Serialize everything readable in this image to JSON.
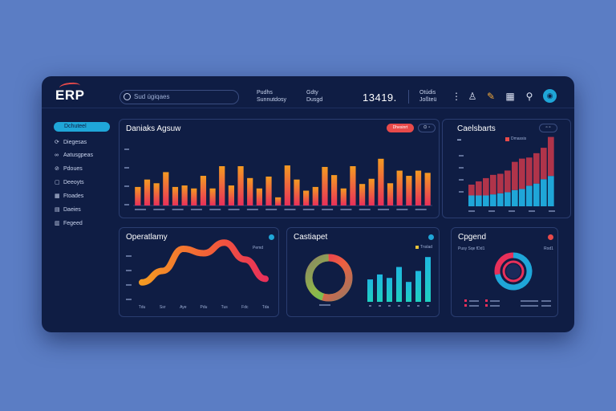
{
  "header": {
    "logo": "ERP",
    "search_text": "Sud úgiqaes",
    "pair1": [
      "Pudhs",
      "Sunnutdosy"
    ],
    "pair2": [
      "Gdty",
      "Dusgd"
    ],
    "clock": "13419.",
    "date": [
      "Otúdis",
      "Joßteü"
    ]
  },
  "sidebar": {
    "active": "Dchuteel",
    "items": [
      {
        "label": "Diegesas",
        "icon": "sync-icon"
      },
      {
        "label": "Aatusgpeas",
        "icon": "link-icon"
      },
      {
        "label": "Pdoues",
        "icon": "pin-icon"
      },
      {
        "label": "Deeoyts",
        "icon": "box-icon"
      },
      {
        "label": "Ftoades",
        "icon": "grid-icon"
      },
      {
        "label": "Daeies",
        "icon": "list-icon"
      },
      {
        "label": "Fegeed",
        "icon": "table-icon"
      }
    ]
  },
  "panels": {
    "p1": {
      "title": "Daniaks Agsuw",
      "btn": "Dhesinrt"
    },
    "p2": {
      "title": "Caelsbarts",
      "legend": "Dmassis"
    },
    "p3": {
      "title": "Operatlamy",
      "legend": "Pemd"
    },
    "p4": {
      "title": "Castiapet",
      "legend": "Tnslad"
    },
    "p5": {
      "title": "Cpgend",
      "legend": "Pusy Sqe fDd1",
      "legend2": "Rod1"
    }
  },
  "colors": {
    "bg": "#5b7dc4",
    "panel": "#0f1d44",
    "accent": "#1fa6d8",
    "red": "#e84a4a"
  },
  "chart_data": [
    {
      "type": "bar",
      "title": "Daniaks Agsuw",
      "ylim": [
        0,
        100
      ],
      "series": [
        {
          "values": [
            25,
            35,
            30,
            45,
            25,
            27,
            23,
            40,
            23,
            53,
            27,
            53,
            37,
            23,
            39,
            11,
            54,
            35,
            20,
            25,
            52,
            41,
            23,
            53,
            29,
            36,
            63,
            30,
            47,
            40,
            47,
            44
          ]
        }
      ]
    },
    {
      "type": "bar",
      "title": "Caelsbarts",
      "series": [
        {
          "values": [
            10,
            10,
            10,
            11,
            12,
            13,
            15,
            16,
            19,
            21,
            25,
            28
          ]
        },
        {
          "values": [
            10,
            13,
            16,
            18,
            18,
            20,
            26,
            28,
            26,
            28,
            29,
            36
          ]
        }
      ]
    },
    {
      "type": "line",
      "title": "Operatlamy",
      "x": [
        "Tdu",
        "Ssr",
        "Aye",
        "Pdu",
        "Tus",
        "Fdc",
        "Tda"
      ],
      "series": [
        {
          "values": [
            22,
            35,
            60,
            55,
            67,
            48,
            26
          ]
        }
      ]
    },
    {
      "type": "pie",
      "title": "Castiapet",
      "values": [
        55,
        45
      ]
    },
    {
      "type": "bar",
      "title": "Castiapet",
      "series": [
        {
          "values": [
            45,
            55,
            48,
            70,
            40,
            62,
            90
          ]
        }
      ]
    },
    {
      "type": "pie",
      "title": "Cpgend",
      "values": [
        72,
        28
      ]
    }
  ]
}
